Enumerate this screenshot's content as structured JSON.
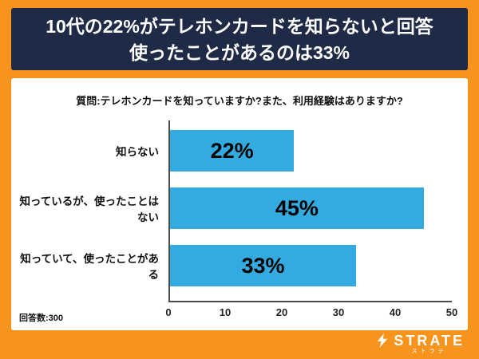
{
  "page": {
    "background_color": "#F7941E",
    "panel_color": "#FFFFFF"
  },
  "header": {
    "title_line1": "10代の22%がテレホンカードを知らないと回答",
    "title_line2": "使ったことがあるのは33%",
    "background_color": "#1F2A47",
    "text_color": "#FFFFFF"
  },
  "chart_data": {
    "type": "bar",
    "orientation": "horizontal",
    "title": "質問:テレホンカードを知っていますか?また、利用経験はありますか?",
    "categories": [
      "知らない",
      "知っているが、使ったことはない",
      "知っていて、使ったことがある"
    ],
    "values": [
      22,
      45,
      33
    ],
    "value_labels": [
      "22%",
      "45%",
      "33%"
    ],
    "xlabel": "",
    "ylabel": "",
    "xlim": [
      0,
      50
    ],
    "x_ticks": [
      0,
      10,
      20,
      30,
      40,
      50
    ],
    "bar_color": "#33ABE1",
    "grid": false,
    "legend": false
  },
  "footer": {
    "respondents_label": "回答数:300",
    "logo_text": "STRATE",
    "logo_subtext": "ストラテ"
  }
}
